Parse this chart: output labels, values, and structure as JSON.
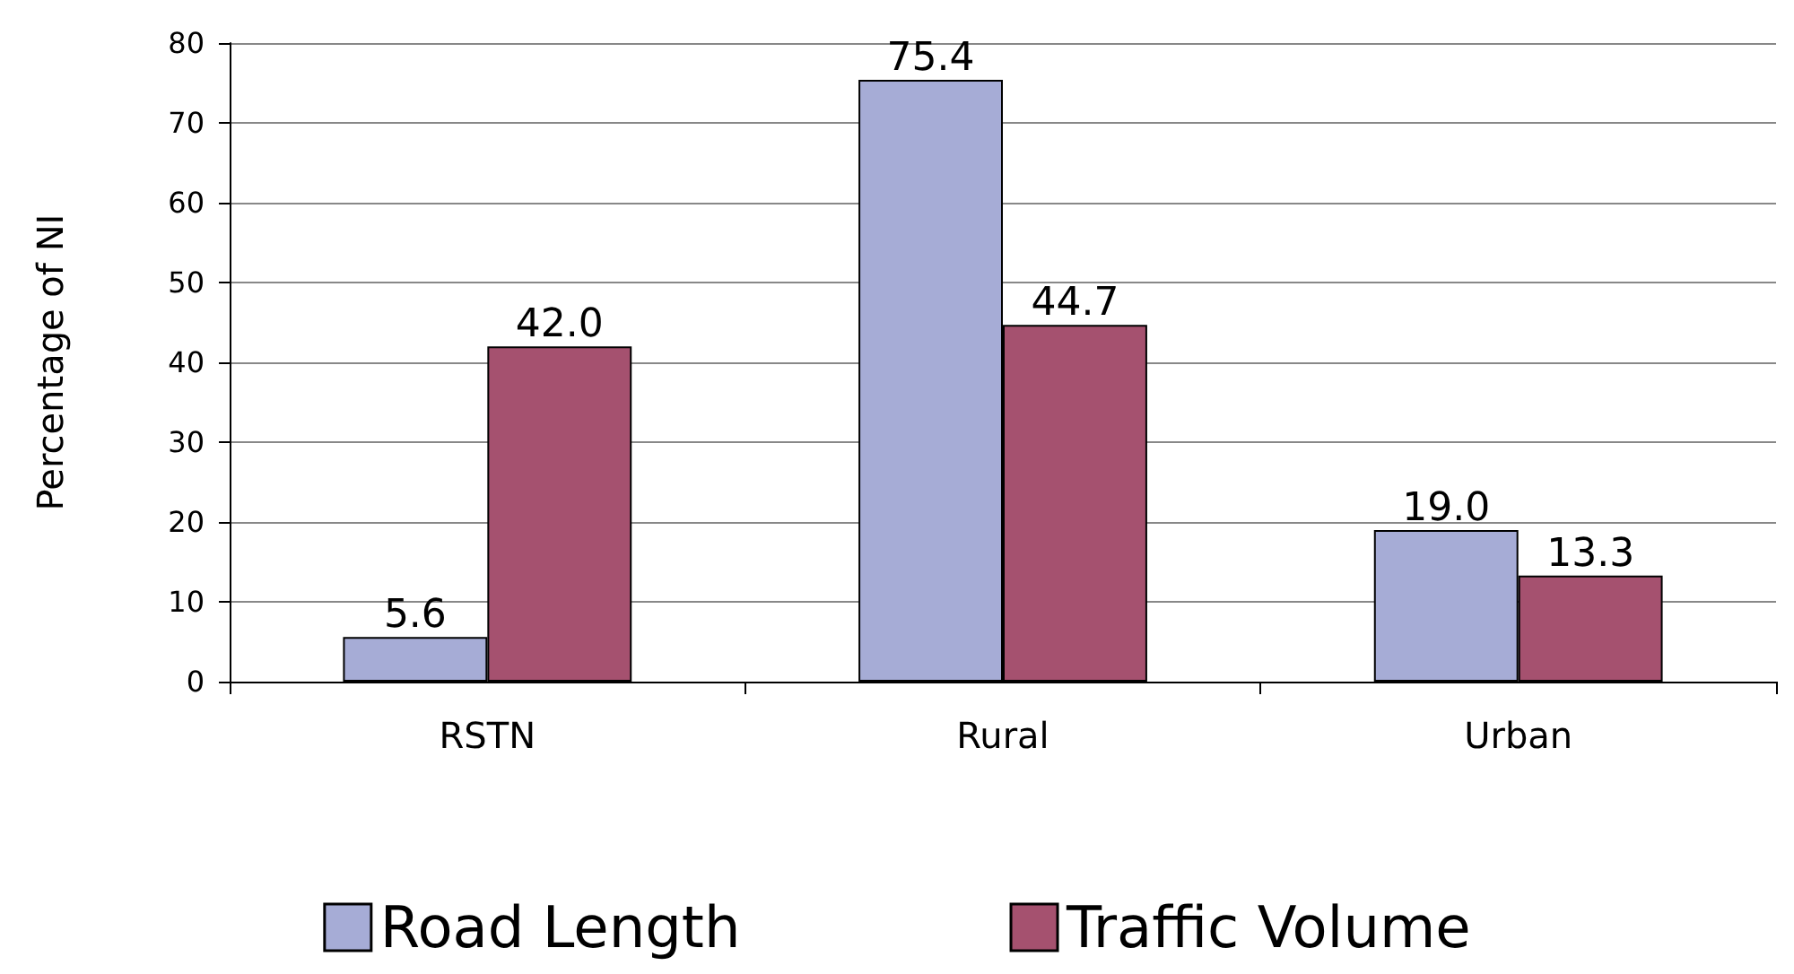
{
  "chart_data": {
    "type": "bar",
    "ylabel": "Percentage of NI",
    "categories": [
      "RSTN",
      "Rural",
      "Urban"
    ],
    "series": [
      {
        "name": "Road Length",
        "color": "#a6acd6",
        "values": [
          5.6,
          75.4,
          19.0
        ],
        "value_labels": [
          "5.6",
          "75.4",
          "19.0"
        ]
      },
      {
        "name": "Traffic Volume",
        "color": "#a5516f",
        "values": [
          42.0,
          44.7,
          13.3
        ],
        "value_labels": [
          "42.0",
          "44.7",
          "13.3"
        ]
      }
    ],
    "ylim": [
      0,
      80
    ],
    "yticks": [
      0,
      10,
      20,
      30,
      40,
      50,
      60,
      70,
      80
    ],
    "grid": "y",
    "legend": "bottom"
  }
}
